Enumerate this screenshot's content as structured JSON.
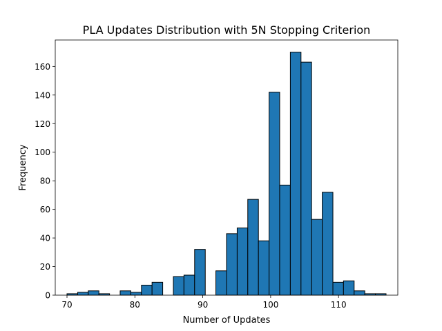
{
  "chart_data": {
    "type": "bar",
    "subtype": "histogram",
    "title": "PLA Updates Distribution with 5N Stopping Criterion",
    "xlabel": "Number of Updates",
    "ylabel": "Frequency",
    "xlim": [
      68.27,
      118.73
    ],
    "ylim": [
      0,
      178.5
    ],
    "xticks": [
      70,
      80,
      90,
      100,
      110
    ],
    "yticks": [
      0,
      20,
      40,
      60,
      80,
      100,
      120,
      140,
      160
    ],
    "grid": false,
    "bar_color": "#1f77b4",
    "edge_color": "#000000",
    "bins": [
      {
        "start": 70.0,
        "end": 71.57,
        "value": 1
      },
      {
        "start": 71.57,
        "end": 73.13,
        "value": 2
      },
      {
        "start": 73.13,
        "end": 74.7,
        "value": 3
      },
      {
        "start": 74.7,
        "end": 76.27,
        "value": 1
      },
      {
        "start": 76.27,
        "end": 77.83,
        "value": 0
      },
      {
        "start": 77.83,
        "end": 79.4,
        "value": 3
      },
      {
        "start": 79.4,
        "end": 80.97,
        "value": 2
      },
      {
        "start": 80.97,
        "end": 82.53,
        "value": 7
      },
      {
        "start": 82.53,
        "end": 84.1,
        "value": 9
      },
      {
        "start": 84.1,
        "end": 85.67,
        "value": 0
      },
      {
        "start": 85.67,
        "end": 87.23,
        "value": 13
      },
      {
        "start": 87.23,
        "end": 88.8,
        "value": 14
      },
      {
        "start": 88.8,
        "end": 90.37,
        "value": 32
      },
      {
        "start": 90.37,
        "end": 91.93,
        "value": 0
      },
      {
        "start": 91.93,
        "end": 93.5,
        "value": 17
      },
      {
        "start": 93.5,
        "end": 95.07,
        "value": 43
      },
      {
        "start": 95.07,
        "end": 96.63,
        "value": 47
      },
      {
        "start": 96.63,
        "end": 98.2,
        "value": 67
      },
      {
        "start": 98.2,
        "end": 99.77,
        "value": 38
      },
      {
        "start": 99.77,
        "end": 101.33,
        "value": 142
      },
      {
        "start": 101.33,
        "end": 102.9,
        "value": 77
      },
      {
        "start": 102.9,
        "end": 104.47,
        "value": 170
      },
      {
        "start": 104.47,
        "end": 106.03,
        "value": 163
      },
      {
        "start": 106.03,
        "end": 107.6,
        "value": 53
      },
      {
        "start": 107.6,
        "end": 109.17,
        "value": 72
      },
      {
        "start": 109.17,
        "end": 110.73,
        "value": 9
      },
      {
        "start": 110.73,
        "end": 112.3,
        "value": 10
      },
      {
        "start": 112.3,
        "end": 113.87,
        "value": 3
      },
      {
        "start": 113.87,
        "end": 115.43,
        "value": 1
      },
      {
        "start": 115.43,
        "end": 117.0,
        "value": 1
      }
    ]
  }
}
